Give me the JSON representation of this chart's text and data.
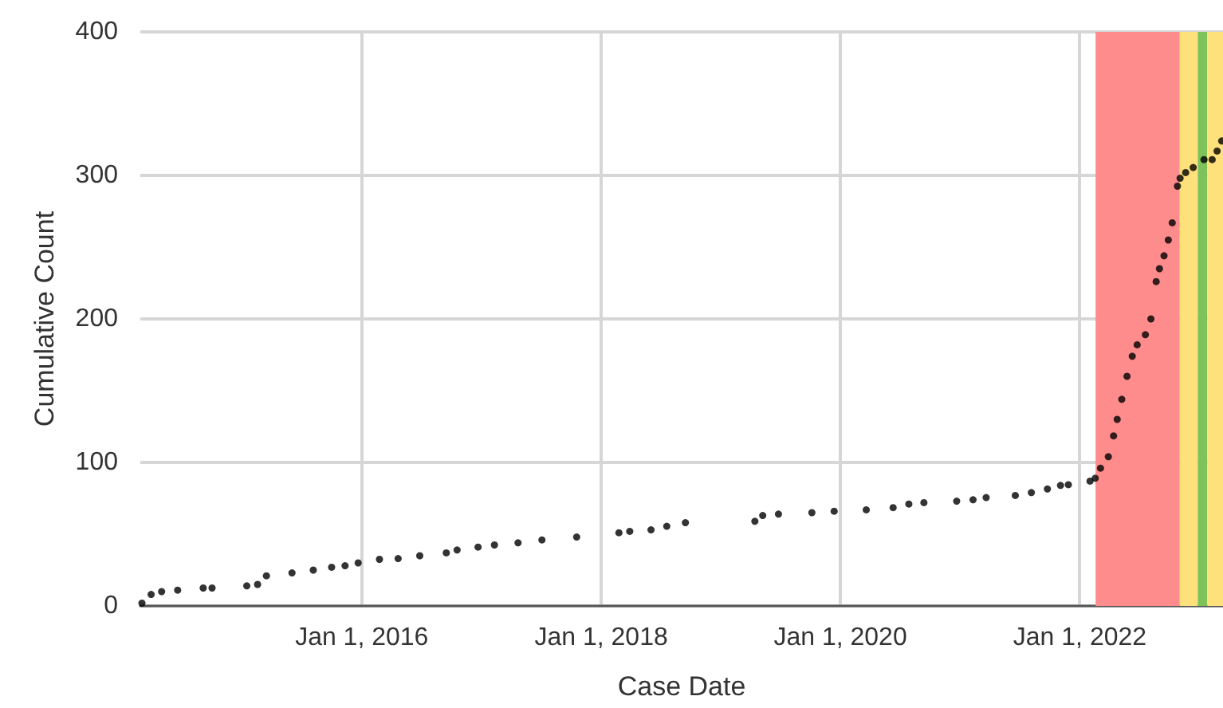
{
  "chart_data": {
    "type": "scatter",
    "xlabel": "Case Date",
    "ylabel": "Cumulative Count",
    "x": [
      "2014-03-01",
      "2014-03-29",
      "2014-04-30",
      "2014-06-18",
      "2014-09-04",
      "2014-10-01",
      "2015-01-15",
      "2015-02-17",
      "2015-03-16",
      "2015-06-02",
      "2015-08-06",
      "2015-10-01",
      "2015-11-11",
      "2015-12-21",
      "2016-02-24",
      "2016-04-21",
      "2016-06-26",
      "2016-09-15",
      "2016-10-18",
      "2016-12-21",
      "2017-02-09",
      "2017-04-22",
      "2017-07-04",
      "2017-10-18",
      "2018-02-24",
      "2018-03-29",
      "2018-06-02",
      "2018-07-20",
      "2018-09-15",
      "2019-04-15",
      "2019-05-09",
      "2019-06-26",
      "2019-10-06",
      "2019-12-13",
      "2020-03-20",
      "2020-06-10",
      "2020-07-28",
      "2020-09-12",
      "2020-12-21",
      "2021-02-09",
      "2021-03-21",
      "2021-06-18",
      "2021-08-06",
      "2021-09-24",
      "2021-11-03",
      "2021-11-27",
      "2022-02-01",
      "2022-02-17",
      "2022-03-05",
      "2022-03-29",
      "2022-04-14",
      "2022-04-25",
      "2022-05-09",
      "2022-05-25",
      "2022-06-10",
      "2022-06-25",
      "2022-07-20",
      "2022-08-06",
      "2022-08-22",
      "2022-09-01",
      "2022-09-15",
      "2022-09-28",
      "2022-10-10",
      "2022-10-26",
      "2022-11-03",
      "2022-11-20",
      "2022-12-13",
      "2023-01-15",
      "2023-02-09",
      "2023-02-24",
      "2023-03-10"
    ],
    "values": [
      2,
      8,
      10,
      11,
      12.5,
      12.5,
      14,
      15,
      21,
      23,
      25,
      27,
      28,
      30,
      32.5,
      33,
      35,
      37,
      39,
      41,
      42.5,
      44,
      46,
      48,
      51,
      52,
      53,
      55.5,
      58,
      59,
      63,
      64,
      65,
      66,
      67,
      68.5,
      71,
      72,
      73,
      74,
      75.5,
      77,
      79,
      81.5,
      84,
      84.5,
      87,
      89,
      96,
      104,
      118.5,
      130,
      144,
      160,
      174,
      182,
      189,
      200,
      226,
      235,
      244,
      255,
      267,
      292.5,
      298,
      302,
      305.5,
      311,
      311,
      317,
      324
    ],
    "color": "#000000",
    "marker": "circle",
    "xlim": [
      "2014-02-24",
      "2023-03-14"
    ],
    "xticks": [
      {
        "value": "2016-01-01",
        "label": "Jan 1, 2016"
      },
      {
        "value": "2018-01-01",
        "label": "Jan 1, 2018"
      },
      {
        "value": "2020-01-01",
        "label": "Jan 1, 2020"
      },
      {
        "value": "2022-01-01",
        "label": "Jan 1, 2022"
      }
    ],
    "ylim": [
      0,
      400
    ],
    "yticks": [
      0,
      100,
      200,
      300,
      400
    ],
    "grid": true,
    "bands": [
      {
        "axis": "x",
        "from": "2022-02-18",
        "to": "2022-11-02",
        "color": "#ff8c8c"
      },
      {
        "axis": "x",
        "from": "2022-11-02",
        "to": "2022-12-27",
        "color": "#fee17a"
      },
      {
        "axis": "x",
        "from": "2022-12-27",
        "to": "2023-01-25",
        "color": "#7dc35a"
      },
      {
        "axis": "x",
        "from": "2023-01-25",
        "to": "2023-03-14",
        "color": "#fee17a"
      }
    ]
  }
}
